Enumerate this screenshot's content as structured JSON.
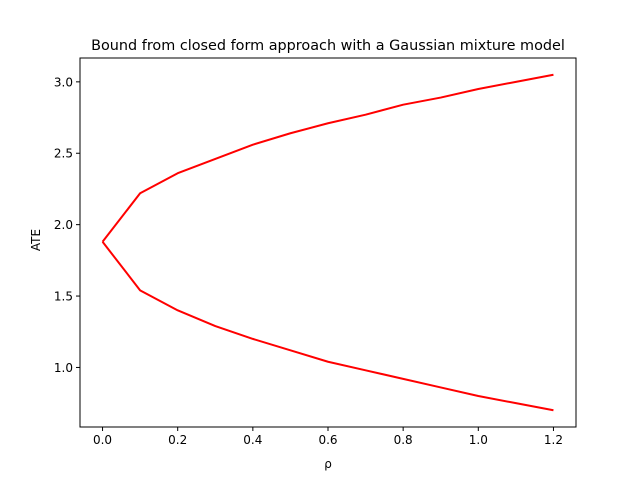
{
  "chart_data": {
    "type": "line",
    "title": "Bound from closed form approach with a Gaussian mixture model",
    "xlabel": "ρ",
    "ylabel": "ATE",
    "xlim": [
      -0.06,
      1.26
    ],
    "ylim": [
      0.583,
      3.167
    ],
    "xticks": [
      0.0,
      0.2,
      0.4,
      0.6,
      0.8,
      1.0,
      1.2
    ],
    "xtick_labels": [
      "0.0",
      "0.2",
      "0.4",
      "0.6",
      "0.8",
      "1.0",
      "1.2"
    ],
    "yticks": [
      1.0,
      1.5,
      2.0,
      2.5,
      3.0
    ],
    "ytick_labels": [
      "1.0",
      "1.5",
      "2.0",
      "2.5",
      "3.0"
    ],
    "grid": false,
    "series": [
      {
        "color": "#ff0000",
        "x": [
          0.0,
          0.1,
          0.2,
          0.3,
          0.4,
          0.5,
          0.6,
          0.7,
          0.8,
          0.9,
          1.0,
          1.1,
          1.2
        ],
        "values": [
          1.88,
          2.22,
          2.36,
          2.46,
          2.56,
          2.64,
          2.71,
          2.77,
          2.84,
          2.89,
          2.95,
          3.0,
          3.05
        ]
      },
      {
        "color": "#ff0000",
        "x": [
          0.0,
          0.1,
          0.2,
          0.3,
          0.4,
          0.5,
          0.6,
          0.7,
          0.8,
          0.9,
          1.0,
          1.1,
          1.2
        ],
        "values": [
          1.88,
          1.54,
          1.4,
          1.29,
          1.2,
          1.12,
          1.04,
          0.98,
          0.92,
          0.86,
          0.8,
          0.75,
          0.7
        ]
      }
    ]
  }
}
